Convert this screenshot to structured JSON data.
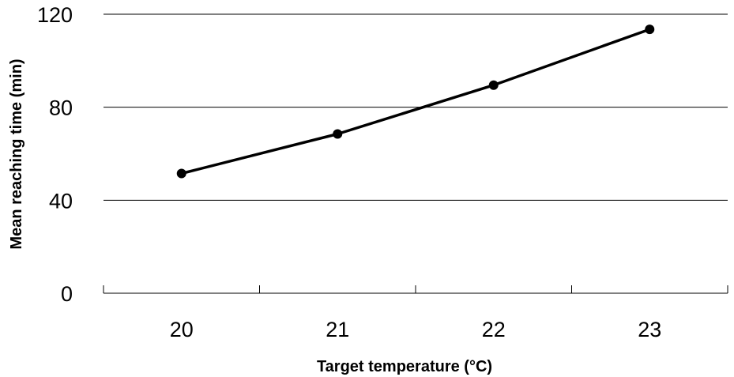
{
  "chart_data": {
    "type": "line",
    "title": "",
    "xlabel": "Target temperature (°C)",
    "ylabel": "Mean reaching time (min)",
    "categories": [
      "20",
      "21",
      "22",
      "23"
    ],
    "series": [
      {
        "values": [
          51.5,
          68.5,
          89.5,
          113.5
        ],
        "color": "#000000"
      }
    ],
    "ylim": [
      0,
      120
    ],
    "yticks": [
      0,
      40,
      80,
      120
    ],
    "grid": "horizontal",
    "legend": "none"
  }
}
